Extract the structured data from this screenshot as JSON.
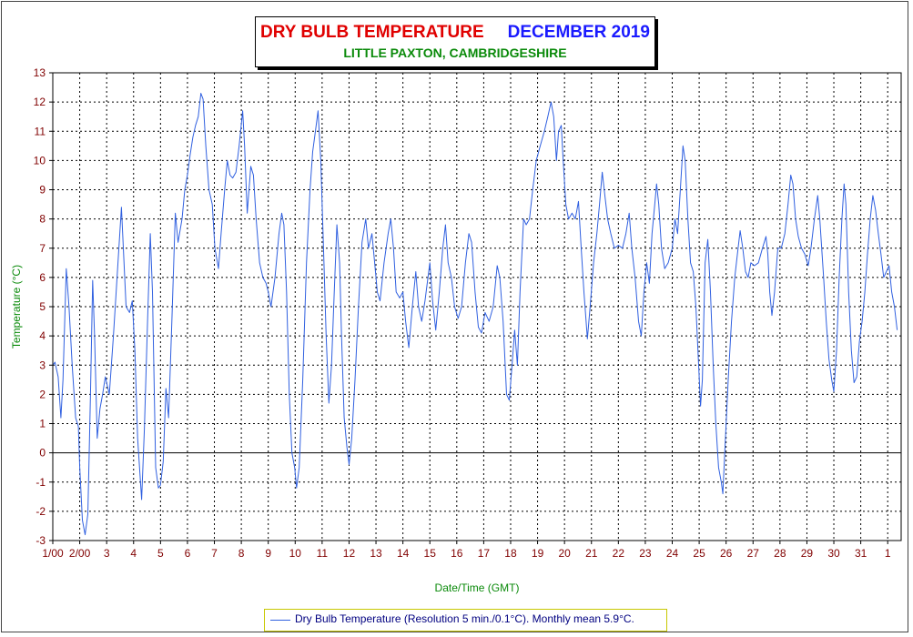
{
  "chart_data": {
    "type": "line",
    "title": "DRY BULB TEMPERATURE",
    "title_right": "DECEMBER 2019",
    "subtitle": "LITTLE PAXTON, CAMBRIDGESHIRE",
    "xlabel": "Date/Time (GMT)",
    "ylabel": "Temperature (°C)",
    "ylim": [
      -3,
      13
    ],
    "xlim": [
      1,
      32.5
    ],
    "y_ticks": [
      -3,
      -2,
      -1,
      0,
      1,
      2,
      3,
      4,
      5,
      6,
      7,
      8,
      9,
      10,
      11,
      12,
      13
    ],
    "x_ticks": [
      {
        "x": 1,
        "label": "1/00"
      },
      {
        "x": 2,
        "label": "2/00"
      },
      {
        "x": 3,
        "label": "3"
      },
      {
        "x": 4,
        "label": "4"
      },
      {
        "x": 5,
        "label": "5"
      },
      {
        "x": 6,
        "label": "6"
      },
      {
        "x": 7,
        "label": "7"
      },
      {
        "x": 8,
        "label": "8"
      },
      {
        "x": 9,
        "label": "9"
      },
      {
        "x": 10,
        "label": "10"
      },
      {
        "x": 11,
        "label": "11"
      },
      {
        "x": 12,
        "label": "12"
      },
      {
        "x": 13,
        "label": "13"
      },
      {
        "x": 14,
        "label": "14"
      },
      {
        "x": 15,
        "label": "15"
      },
      {
        "x": 16,
        "label": "16"
      },
      {
        "x": 17,
        "label": "17"
      },
      {
        "x": 18,
        "label": "18"
      },
      {
        "x": 19,
        "label": "19"
      },
      {
        "x": 20,
        "label": "20"
      },
      {
        "x": 21,
        "label": "21"
      },
      {
        "x": 22,
        "label": "22"
      },
      {
        "x": 23,
        "label": "23"
      },
      {
        "x": 24,
        "label": "24"
      },
      {
        "x": 25,
        "label": "25"
      },
      {
        "x": 26,
        "label": "26"
      },
      {
        "x": 27,
        "label": "27"
      },
      {
        "x": 28,
        "label": "28"
      },
      {
        "x": 29,
        "label": "29"
      },
      {
        "x": 30,
        "label": "30"
      },
      {
        "x": 31,
        "label": "31"
      },
      {
        "x": 32,
        "label": "1"
      }
    ],
    "grid": true,
    "legend_position": "bottom-center",
    "series": [
      {
        "name": "Dry Bulb Temperature (Resolution 5 min./0.1°C). Monthly mean 5.9°C.",
        "color": "#3060e0",
        "points": [
          [
            1.0,
            3.0
          ],
          [
            1.08,
            3.1
          ],
          [
            1.2,
            2.6
          ],
          [
            1.3,
            1.2
          ],
          [
            1.38,
            2.5
          ],
          [
            1.5,
            6.3
          ],
          [
            1.6,
            5.0
          ],
          [
            1.72,
            3.0
          ],
          [
            1.85,
            1.2
          ],
          [
            1.95,
            0.9
          ],
          [
            2.0,
            -0.5
          ],
          [
            2.1,
            -2.3
          ],
          [
            2.2,
            -2.8
          ],
          [
            2.3,
            -2.1
          ],
          [
            2.4,
            2.0
          ],
          [
            2.48,
            5.9
          ],
          [
            2.55,
            4.0
          ],
          [
            2.65,
            0.5
          ],
          [
            2.75,
            1.5
          ],
          [
            2.85,
            2.0
          ],
          [
            2.95,
            2.6
          ],
          [
            3.1,
            2.0
          ],
          [
            3.25,
            4.0
          ],
          [
            3.42,
            6.5
          ],
          [
            3.55,
            8.4
          ],
          [
            3.62,
            7.0
          ],
          [
            3.72,
            5.0
          ],
          [
            3.85,
            4.8
          ],
          [
            3.95,
            5.2
          ],
          [
            4.05,
            3.5
          ],
          [
            4.15,
            0.5
          ],
          [
            4.3,
            -1.6
          ],
          [
            4.4,
            0.8
          ],
          [
            4.52,
            4.5
          ],
          [
            4.62,
            7.5
          ],
          [
            4.7,
            5.5
          ],
          [
            4.82,
            -0.5
          ],
          [
            4.92,
            -1.2
          ],
          [
            5.0,
            -1.1
          ],
          [
            5.1,
            -0.3
          ],
          [
            5.2,
            2.2
          ],
          [
            5.3,
            1.2
          ],
          [
            5.42,
            4.5
          ],
          [
            5.55,
            8.2
          ],
          [
            5.65,
            7.2
          ],
          [
            5.8,
            8.0
          ],
          [
            5.9,
            9.0
          ],
          [
            6.0,
            9.5
          ],
          [
            6.1,
            10.2
          ],
          [
            6.2,
            10.8
          ],
          [
            6.3,
            11.2
          ],
          [
            6.4,
            11.5
          ],
          [
            6.5,
            12.3
          ],
          [
            6.58,
            12.1
          ],
          [
            6.68,
            10.5
          ],
          [
            6.8,
            9.0
          ],
          [
            6.92,
            8.5
          ],
          [
            7.02,
            7.0
          ],
          [
            7.15,
            6.3
          ],
          [
            7.25,
            7.5
          ],
          [
            7.38,
            9.0
          ],
          [
            7.48,
            10.0
          ],
          [
            7.58,
            9.5
          ],
          [
            7.68,
            9.4
          ],
          [
            7.8,
            9.6
          ],
          [
            7.92,
            10.5
          ],
          [
            8.05,
            11.7
          ],
          [
            8.12,
            10.5
          ],
          [
            8.22,
            8.2
          ],
          [
            8.35,
            9.8
          ],
          [
            8.45,
            9.5
          ],
          [
            8.55,
            8.0
          ],
          [
            8.68,
            6.5
          ],
          [
            8.8,
            6.0
          ],
          [
            8.92,
            5.8
          ],
          [
            9.0,
            5.5
          ],
          [
            9.1,
            5.0
          ],
          [
            9.25,
            6.0
          ],
          [
            9.4,
            7.5
          ],
          [
            9.5,
            8.2
          ],
          [
            9.58,
            7.8
          ],
          [
            9.68,
            5.5
          ],
          [
            9.78,
            2.0
          ],
          [
            9.88,
            0.0
          ],
          [
            9.98,
            -0.5
          ],
          [
            10.05,
            -1.2
          ],
          [
            10.15,
            -0.5
          ],
          [
            10.28,
            2.5
          ],
          [
            10.42,
            6.5
          ],
          [
            10.55,
            9.0
          ],
          [
            10.65,
            10.3
          ],
          [
            10.75,
            11.0
          ],
          [
            10.85,
            11.7
          ],
          [
            10.95,
            10.0
          ],
          [
            11.05,
            7.0
          ],
          [
            11.15,
            4.0
          ],
          [
            11.25,
            1.7
          ],
          [
            11.35,
            3.0
          ],
          [
            11.45,
            5.5
          ],
          [
            11.55,
            7.8
          ],
          [
            11.65,
            6.5
          ],
          [
            11.72,
            4.0
          ],
          [
            11.82,
            1.2
          ],
          [
            11.92,
            0.2
          ],
          [
            12.0,
            -0.4
          ],
          [
            12.1,
            0.5
          ],
          [
            12.22,
            2.5
          ],
          [
            12.35,
            5.0
          ],
          [
            12.48,
            7.2
          ],
          [
            12.62,
            8.0
          ],
          [
            12.72,
            7.0
          ],
          [
            12.85,
            7.5
          ],
          [
            12.95,
            6.5
          ],
          [
            13.05,
            5.5
          ],
          [
            13.15,
            5.2
          ],
          [
            13.3,
            6.5
          ],
          [
            13.45,
            7.5
          ],
          [
            13.55,
            8.0
          ],
          [
            13.65,
            7.0
          ],
          [
            13.75,
            5.5
          ],
          [
            13.88,
            5.3
          ],
          [
            14.0,
            5.5
          ],
          [
            14.1,
            4.5
          ],
          [
            14.22,
            3.6
          ],
          [
            14.35,
            5.0
          ],
          [
            14.48,
            6.2
          ],
          [
            14.58,
            5.0
          ],
          [
            14.7,
            4.5
          ],
          [
            14.82,
            5.2
          ],
          [
            15.0,
            6.5
          ],
          [
            15.1,
            5.2
          ],
          [
            15.22,
            4.2
          ],
          [
            15.35,
            5.5
          ],
          [
            15.48,
            7.0
          ],
          [
            15.58,
            7.8
          ],
          [
            15.68,
            6.5
          ],
          [
            15.8,
            6.0
          ],
          [
            15.92,
            5.0
          ],
          [
            16.05,
            4.6
          ],
          [
            16.18,
            5.0
          ],
          [
            16.32,
            6.5
          ],
          [
            16.45,
            7.5
          ],
          [
            16.55,
            7.2
          ],
          [
            16.68,
            5.5
          ],
          [
            16.8,
            4.3
          ],
          [
            16.92,
            4.1
          ],
          [
            17.05,
            4.8
          ],
          [
            17.2,
            4.5
          ],
          [
            17.35,
            5.0
          ],
          [
            17.5,
            6.4
          ],
          [
            17.6,
            6.0
          ],
          [
            17.72,
            4.5
          ],
          [
            17.85,
            2.0
          ],
          [
            17.95,
            1.8
          ],
          [
            18.05,
            3.0
          ],
          [
            18.15,
            4.2
          ],
          [
            18.25,
            3.0
          ],
          [
            18.35,
            5.5
          ],
          [
            18.48,
            8.0
          ],
          [
            18.58,
            7.8
          ],
          [
            18.7,
            8.0
          ],
          [
            18.82,
            9.0
          ],
          [
            18.95,
            10.0
          ],
          [
            19.1,
            10.5
          ],
          [
            19.25,
            11.0
          ],
          [
            19.38,
            11.5
          ],
          [
            19.5,
            12.0
          ],
          [
            19.6,
            11.5
          ],
          [
            19.7,
            10.0
          ],
          [
            19.78,
            11.0
          ],
          [
            19.88,
            11.2
          ],
          [
            19.95,
            10.0
          ],
          [
            20.05,
            8.5
          ],
          [
            20.15,
            8.0
          ],
          [
            20.28,
            8.2
          ],
          [
            20.4,
            8.0
          ],
          [
            20.52,
            8.6
          ],
          [
            20.62,
            7.0
          ],
          [
            20.72,
            5.5
          ],
          [
            20.85,
            3.9
          ],
          [
            20.95,
            5.0
          ],
          [
            21.08,
            6.5
          ],
          [
            21.2,
            7.5
          ],
          [
            21.3,
            8.5
          ],
          [
            21.4,
            9.6
          ],
          [
            21.5,
            8.8
          ],
          [
            21.6,
            8.0
          ],
          [
            21.72,
            7.5
          ],
          [
            21.85,
            7.0
          ],
          [
            22.0,
            7.1
          ],
          [
            22.15,
            7.0
          ],
          [
            22.28,
            7.5
          ],
          [
            22.4,
            8.2
          ],
          [
            22.5,
            7.0
          ],
          [
            22.62,
            6.0
          ],
          [
            22.75,
            4.5
          ],
          [
            22.85,
            4.0
          ],
          [
            22.95,
            5.5
          ],
          [
            23.05,
            6.5
          ],
          [
            23.15,
            5.8
          ],
          [
            23.25,
            7.5
          ],
          [
            23.35,
            8.5
          ],
          [
            23.42,
            9.2
          ],
          [
            23.5,
            8.5
          ],
          [
            23.6,
            7.0
          ],
          [
            23.72,
            6.3
          ],
          [
            23.85,
            6.5
          ],
          [
            24.0,
            7.0
          ],
          [
            24.1,
            8.0
          ],
          [
            24.2,
            7.5
          ],
          [
            24.3,
            9.0
          ],
          [
            24.4,
            10.5
          ],
          [
            24.48,
            10.0
          ],
          [
            24.58,
            8.0
          ],
          [
            24.68,
            6.5
          ],
          [
            24.78,
            6.2
          ],
          [
            24.88,
            5.0
          ],
          [
            24.98,
            3.0
          ],
          [
            25.05,
            1.6
          ],
          [
            25.12,
            2.5
          ],
          [
            25.22,
            6.5
          ],
          [
            25.32,
            7.3
          ],
          [
            25.42,
            5.5
          ],
          [
            25.52,
            3.0
          ],
          [
            25.62,
            1.0
          ],
          [
            25.72,
            -0.5
          ],
          [
            25.82,
            -1.0
          ],
          [
            25.88,
            -1.4
          ],
          [
            25.95,
            0.0
          ],
          [
            26.08,
            2.5
          ],
          [
            26.2,
            4.5
          ],
          [
            26.32,
            6.0
          ],
          [
            26.42,
            6.8
          ],
          [
            26.52,
            7.6
          ],
          [
            26.62,
            7.0
          ],
          [
            26.72,
            6.2
          ],
          [
            26.82,
            6.0
          ],
          [
            26.92,
            6.5
          ],
          [
            27.05,
            6.4
          ],
          [
            27.2,
            6.5
          ],
          [
            27.35,
            7.0
          ],
          [
            27.48,
            7.4
          ],
          [
            27.55,
            6.8
          ],
          [
            27.62,
            5.5
          ],
          [
            27.7,
            4.7
          ],
          [
            27.8,
            5.5
          ],
          [
            27.92,
            7.0
          ],
          [
            28.05,
            7.0
          ],
          [
            28.18,
            7.5
          ],
          [
            28.3,
            8.5
          ],
          [
            28.4,
            9.5
          ],
          [
            28.48,
            9.2
          ],
          [
            28.58,
            8.0
          ],
          [
            28.68,
            7.4
          ],
          [
            28.8,
            7.0
          ],
          [
            28.92,
            6.8
          ],
          [
            29.05,
            6.4
          ],
          [
            29.15,
            7.0
          ],
          [
            29.28,
            8.0
          ],
          [
            29.4,
            8.8
          ],
          [
            29.48,
            8.0
          ],
          [
            29.55,
            7.0
          ],
          [
            29.62,
            6.0
          ],
          [
            29.72,
            4.5
          ],
          [
            29.82,
            3.2
          ],
          [
            29.92,
            2.5
          ],
          [
            30.0,
            2.1
          ],
          [
            30.1,
            3.5
          ],
          [
            30.2,
            6.0
          ],
          [
            30.3,
            8.0
          ],
          [
            30.38,
            9.2
          ],
          [
            30.45,
            8.5
          ],
          [
            30.55,
            5.5
          ],
          [
            30.65,
            3.5
          ],
          [
            30.75,
            2.4
          ],
          [
            30.85,
            2.6
          ],
          [
            30.95,
            3.8
          ],
          [
            31.05,
            4.5
          ],
          [
            31.15,
            5.5
          ],
          [
            31.25,
            6.8
          ],
          [
            31.35,
            8.0
          ],
          [
            31.45,
            8.8
          ],
          [
            31.55,
            8.3
          ],
          [
            31.65,
            7.5
          ],
          [
            31.75,
            6.8
          ],
          [
            31.85,
            6.0
          ],
          [
            31.95,
            6.2
          ],
          [
            32.05,
            6.4
          ],
          [
            32.15,
            5.5
          ],
          [
            32.25,
            5.0
          ],
          [
            32.35,
            4.2
          ]
        ]
      }
    ]
  }
}
